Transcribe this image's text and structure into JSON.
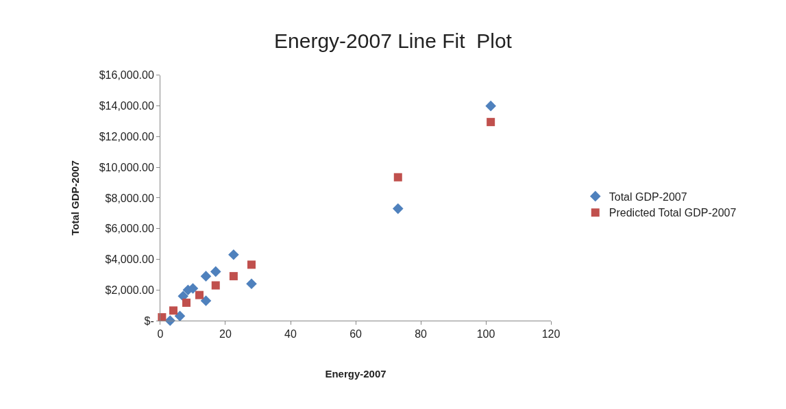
{
  "chart_data": {
    "type": "scatter",
    "title": "Energy-2007 Line Fit  Plot",
    "xlabel": "Energy-2007",
    "ylabel": "Total GDP-2007",
    "xlim": [
      0,
      120
    ],
    "xticks": [
      0,
      20,
      40,
      60,
      80,
      100,
      120
    ],
    "ylim": [
      0,
      16000
    ],
    "yticks": [
      {
        "value": 0,
        "label": "$-"
      },
      {
        "value": 2000,
        "label": "$2,000.00"
      },
      {
        "value": 4000,
        "label": "$4,000.00"
      },
      {
        "value": 6000,
        "label": "$6,000.00"
      },
      {
        "value": 8000,
        "label": "$8,000.00"
      },
      {
        "value": 10000,
        "label": "$10,000.00"
      },
      {
        "value": 12000,
        "label": "$12,000.00"
      },
      {
        "value": 14000,
        "label": "$14,000.00"
      },
      {
        "value": 16000,
        "label": "$16,000.00"
      }
    ],
    "legend": "right",
    "series": [
      {
        "name": "Total GDP-2007",
        "color": "#4f81bd",
        "marker": "diamond",
        "x": [
          3,
          6,
          7,
          8.5,
          10,
          14,
          14,
          17,
          22.5,
          28,
          73,
          101.5
        ],
        "values": [
          0,
          300,
          1600,
          2000,
          2100,
          2900,
          1300,
          3200,
          4300,
          2400,
          7300,
          14000
        ]
      },
      {
        "name": "Predicted Total GDP-2007",
        "color": "#c0504d",
        "marker": "square",
        "x": [
          0.5,
          4,
          8,
          12,
          17,
          22.5,
          28,
          73,
          101.5
        ],
        "values": [
          220,
          660,
          1170,
          1670,
          2300,
          2900,
          3650,
          9350,
          12950
        ]
      }
    ]
  }
}
